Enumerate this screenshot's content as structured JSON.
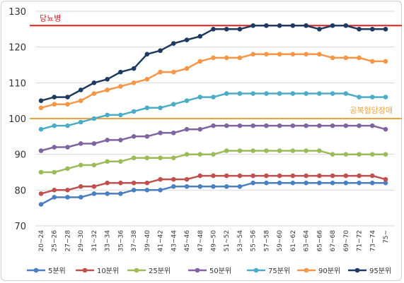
{
  "chart_data": {
    "type": "line",
    "title": "",
    "xlabel": "",
    "ylabel": "",
    "ylim": [
      70,
      130
    ],
    "yticks": [
      70,
      80,
      90,
      100,
      110,
      120,
      130
    ],
    "grid": true,
    "legend_position": "bottom",
    "categories": [
      "20~24",
      "25~26",
      "27~28",
      "29~30",
      "31~32",
      "33~34",
      "35~36",
      "37~38",
      "39~40",
      "41~42",
      "43~44",
      "45~46",
      "47~48",
      "49~50",
      "51~52",
      "53~54",
      "55~56",
      "57~58",
      "59~60",
      "61~62",
      "63~64",
      "65~66",
      "67~68",
      "69~70",
      "71~72",
      "73~74",
      "75~"
    ],
    "reference_lines": [
      {
        "label": "당뇨병",
        "value": 126,
        "color": "#e02020"
      },
      {
        "label": "공복혈당장애",
        "value": 100,
        "color": "#f0a040"
      }
    ],
    "series": [
      {
        "name": "5분위",
        "color": "#4a7fc1",
        "values": [
          76,
          78,
          78,
          78,
          79,
          79,
          79,
          80,
          80,
          80,
          81,
          81,
          81,
          81,
          81,
          81,
          82,
          82,
          82,
          82,
          82,
          82,
          82,
          82,
          82,
          82,
          82
        ]
      },
      {
        "name": "10분위",
        "color": "#c0504d",
        "values": [
          79,
          80,
          80,
          81,
          81,
          82,
          82,
          82,
          82,
          83,
          83,
          83,
          84,
          84,
          84,
          84,
          84,
          84,
          84,
          84,
          84,
          84,
          84,
          84,
          84,
          84,
          83
        ]
      },
      {
        "name": "25분위",
        "color": "#9bbb59",
        "values": [
          85,
          85,
          86,
          87,
          87,
          88,
          88,
          89,
          89,
          89,
          89,
          90,
          90,
          90,
          91,
          91,
          91,
          91,
          91,
          91,
          91,
          91,
          90,
          90,
          90,
          90,
          90
        ]
      },
      {
        "name": "50분위",
        "color": "#8064a2",
        "values": [
          91,
          92,
          92,
          93,
          93,
          94,
          94,
          95,
          95,
          96,
          96,
          97,
          97,
          98,
          98,
          98,
          98,
          98,
          98,
          98,
          98,
          98,
          98,
          98,
          98,
          98,
          97
        ]
      },
      {
        "name": "75분위",
        "color": "#4bacc6",
        "values": [
          97,
          98,
          98,
          99,
          100,
          101,
          101,
          102,
          103,
          103,
          104,
          105,
          106,
          106,
          107,
          107,
          107,
          107,
          107,
          107,
          107,
          107,
          107,
          107,
          106,
          106,
          106
        ]
      },
      {
        "name": "90분위",
        "color": "#f79646",
        "values": [
          103,
          104,
          104,
          105,
          107,
          108,
          109,
          110,
          111,
          113,
          113,
          114,
          116,
          117,
          117,
          117,
          118,
          118,
          118,
          118,
          118,
          118,
          117,
          117,
          117,
          116,
          116
        ]
      },
      {
        "name": "95분위",
        "color": "#1f3a5f",
        "values": [
          105,
          106,
          106,
          108,
          110,
          111,
          113,
          114,
          118,
          119,
          121,
          122,
          123,
          125,
          125,
          125,
          126,
          126,
          126,
          126,
          126,
          125,
          126,
          126,
          125,
          125,
          125
        ]
      }
    ]
  }
}
